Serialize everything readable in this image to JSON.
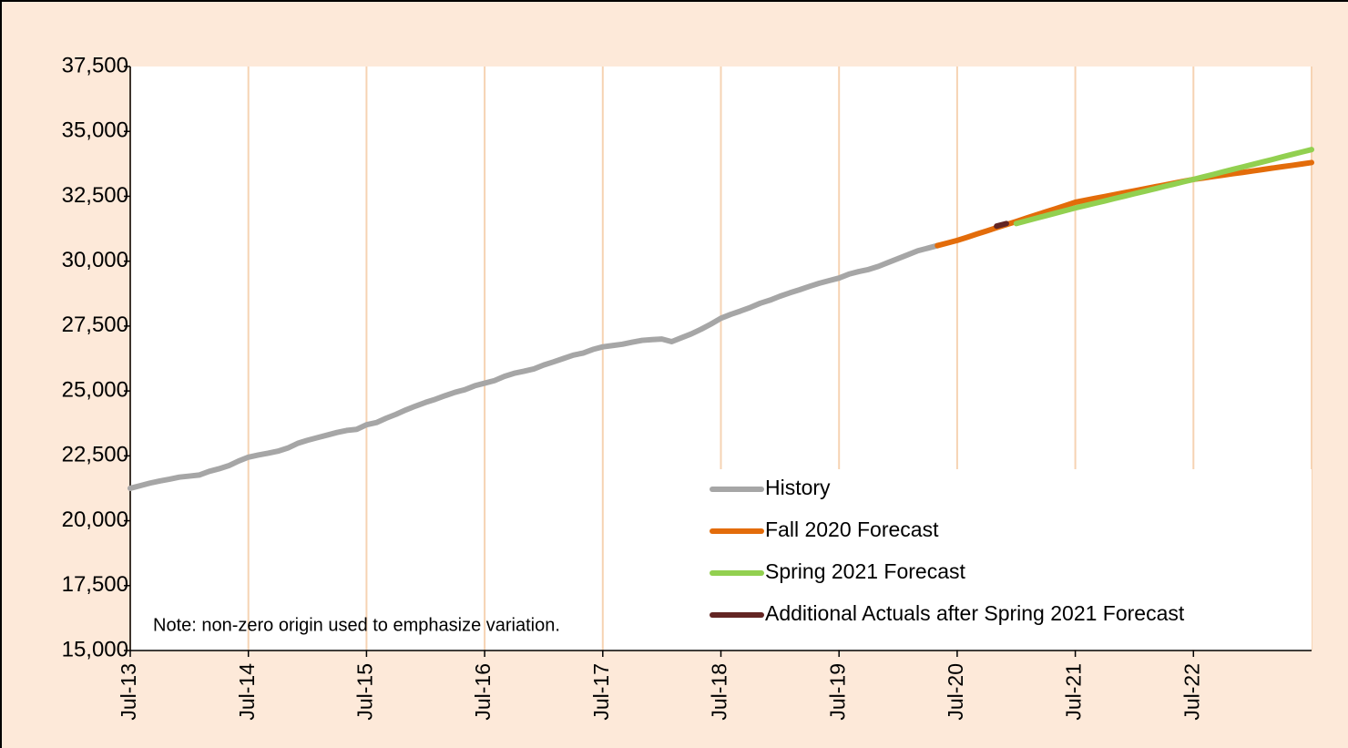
{
  "chart_data": {
    "type": "line",
    "note": "Note: non-zero origin used to emphasize variation.",
    "categories": [
      "Jul-13",
      null,
      null,
      null,
      null,
      null,
      null,
      null,
      null,
      null,
      null,
      null,
      "Jul-14",
      null,
      null,
      null,
      null,
      null,
      null,
      null,
      null,
      null,
      null,
      null,
      "Jul-15",
      null,
      null,
      null,
      null,
      null,
      null,
      null,
      null,
      null,
      null,
      null,
      "Jul-16",
      null,
      null,
      null,
      null,
      null,
      null,
      null,
      null,
      null,
      null,
      null,
      "Jul-17",
      null,
      null,
      null,
      null,
      null,
      null,
      null,
      null,
      null,
      null,
      null,
      "Jul-18",
      null,
      null,
      null,
      null,
      null,
      null,
      null,
      null,
      null,
      null,
      null,
      "Jul-19",
      null,
      null,
      null,
      null,
      null,
      null,
      null,
      null,
      null,
      null,
      null,
      "Jul-20",
      null,
      null,
      null,
      null,
      null,
      null,
      null,
      null,
      null,
      null,
      null,
      "Jul-21",
      null,
      null,
      null,
      null,
      null,
      null,
      null,
      null,
      null,
      null,
      null,
      "Jul-22",
      null,
      null,
      null,
      null,
      null,
      null,
      null,
      null,
      null,
      null,
      null,
      null
    ],
    "series": [
      {
        "name": "History",
        "color": "#a6a6a6",
        "values": [
          21250,
          21350,
          21450,
          21530,
          21600,
          21680,
          21720,
          21760,
          21900,
          22000,
          22120,
          22300,
          22450,
          22530,
          22600,
          22680,
          22800,
          22980,
          23100,
          23200,
          23300,
          23400,
          23480,
          23520,
          23700,
          23780,
          23950,
          24100,
          24270,
          24420,
          24560,
          24680,
          24820,
          24950,
          25050,
          25200,
          25300,
          25400,
          25560,
          25680,
          25760,
          25850,
          26000,
          26120,
          26250,
          26380,
          26460,
          26600,
          26700,
          26750,
          26800,
          26880,
          26950,
          26980,
          27000,
          26900,
          27050,
          27200,
          27380,
          27580,
          27800,
          27950,
          28080,
          28220,
          28380,
          28500,
          28650,
          28780,
          28900,
          29030,
          29150,
          29250,
          29350,
          29500,
          29600,
          29680,
          29800,
          29950,
          30100,
          30250,
          30400,
          30500,
          30600,
          null,
          null,
          null,
          null,
          null,
          null,
          null,
          null,
          null,
          null,
          null,
          null,
          null,
          null,
          null,
          null,
          null,
          null,
          null,
          null,
          null,
          null,
          null,
          null,
          null,
          null,
          null,
          null,
          null,
          null,
          null,
          null,
          null,
          null,
          null,
          null,
          null,
          null
        ]
      },
      {
        "name": "Fall 2020 Forecast",
        "color": "#e36c0a",
        "values": [
          null,
          null,
          null,
          null,
          null,
          null,
          null,
          null,
          null,
          null,
          null,
          null,
          null,
          null,
          null,
          null,
          null,
          null,
          null,
          null,
          null,
          null,
          null,
          null,
          null,
          null,
          null,
          null,
          null,
          null,
          null,
          null,
          null,
          null,
          null,
          null,
          null,
          null,
          null,
          null,
          null,
          null,
          null,
          null,
          null,
          null,
          null,
          null,
          null,
          null,
          null,
          null,
          null,
          null,
          null,
          null,
          null,
          null,
          null,
          null,
          null,
          null,
          null,
          null,
          null,
          null,
          null,
          null,
          null,
          null,
          null,
          null,
          null,
          null,
          null,
          null,
          null,
          null,
          null,
          null,
          null,
          null,
          30600,
          30700,
          30800,
          30920,
          31045,
          31165,
          31290,
          31410,
          31530,
          31655,
          31780,
          31900,
          32020,
          32145,
          32270,
          32345,
          32420,
          32490,
          32565,
          32640,
          32710,
          32785,
          32860,
          32930,
          33005,
          33080,
          33150,
          33205,
          33260,
          33315,
          33370,
          33420,
          33475,
          33530,
          33585,
          33640,
          33690,
          33745,
          33800
        ]
      },
      {
        "name": "Spring 2021 Forecast",
        "color": "#92d050",
        "values": [
          null,
          null,
          null,
          null,
          null,
          null,
          null,
          null,
          null,
          null,
          null,
          null,
          null,
          null,
          null,
          null,
          null,
          null,
          null,
          null,
          null,
          null,
          null,
          null,
          null,
          null,
          null,
          null,
          null,
          null,
          null,
          null,
          null,
          null,
          null,
          null,
          null,
          null,
          null,
          null,
          null,
          null,
          null,
          null,
          null,
          null,
          null,
          null,
          null,
          null,
          null,
          null,
          null,
          null,
          null,
          null,
          null,
          null,
          null,
          null,
          null,
          null,
          null,
          null,
          null,
          null,
          null,
          null,
          null,
          null,
          null,
          null,
          null,
          null,
          null,
          null,
          null,
          null,
          null,
          null,
          null,
          null,
          null,
          null,
          null,
          null,
          null,
          null,
          null,
          null,
          31450,
          31550,
          31650,
          31750,
          31850,
          31950,
          32050,
          32140,
          32230,
          32320,
          32415,
          32505,
          32600,
          32690,
          32780,
          32875,
          32965,
          33060,
          33150,
          33245,
          33340,
          33440,
          33535,
          33630,
          33725,
          33820,
          33915,
          34015,
          34110,
          34205,
          34300
        ]
      },
      {
        "name": "Additional Actuals after Spring 2021 Forecast",
        "color": "#632523",
        "values": [
          null,
          null,
          null,
          null,
          null,
          null,
          null,
          null,
          null,
          null,
          null,
          null,
          null,
          null,
          null,
          null,
          null,
          null,
          null,
          null,
          null,
          null,
          null,
          null,
          null,
          null,
          null,
          null,
          null,
          null,
          null,
          null,
          null,
          null,
          null,
          null,
          null,
          null,
          null,
          null,
          null,
          null,
          null,
          null,
          null,
          null,
          null,
          null,
          null,
          null,
          null,
          null,
          null,
          null,
          null,
          null,
          null,
          null,
          null,
          null,
          null,
          null,
          null,
          null,
          null,
          null,
          null,
          null,
          null,
          null,
          null,
          null,
          null,
          null,
          null,
          null,
          null,
          null,
          null,
          null,
          null,
          null,
          null,
          null,
          null,
          null,
          null,
          null,
          31350,
          31450,
          null,
          null,
          null,
          null,
          null,
          null,
          null,
          null,
          null,
          null,
          null,
          null,
          null,
          null,
          null,
          null,
          null,
          null,
          null,
          null,
          null,
          null,
          null,
          null,
          null,
          null,
          null,
          null,
          null,
          null,
          null
        ]
      }
    ],
    "ylim": [
      15000,
      37500
    ],
    "yticks": [
      {
        "value": 15000,
        "label": "15,000"
      },
      {
        "value": 17500,
        "label": "17,500"
      },
      {
        "value": 20000,
        "label": "20,000"
      },
      {
        "value": 22500,
        "label": "22,500"
      },
      {
        "value": 25000,
        "label": "25,000"
      },
      {
        "value": 27500,
        "label": "27,500"
      },
      {
        "value": 30000,
        "label": "30,000"
      },
      {
        "value": 32500,
        "label": "32,500"
      },
      {
        "value": 35000,
        "label": "35,000"
      },
      {
        "value": 37500,
        "label": "37,500"
      }
    ],
    "grid": true,
    "legend": "lower right"
  }
}
